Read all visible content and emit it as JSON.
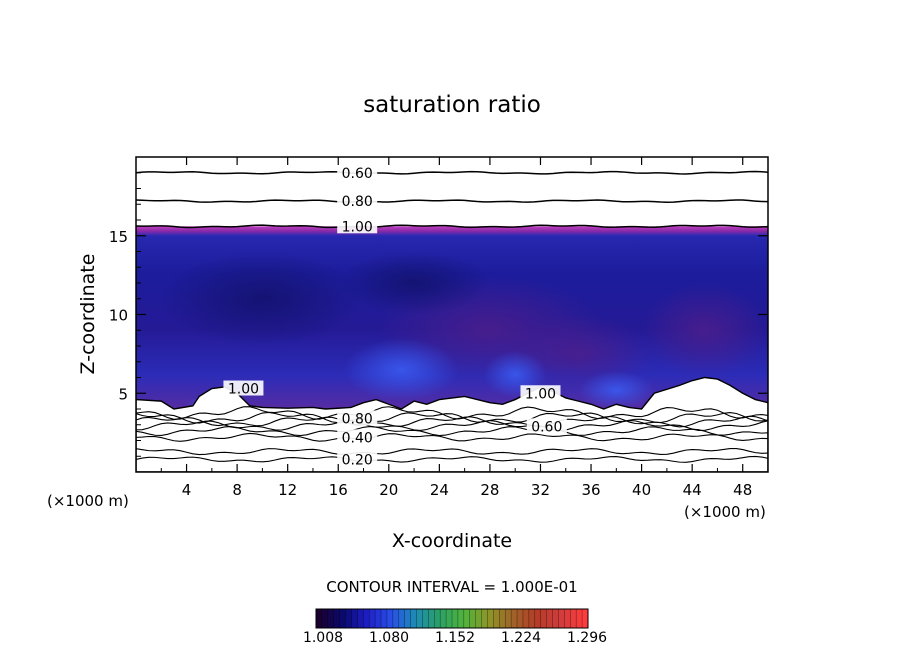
{
  "chart_data": {
    "type": "contour",
    "title": "saturation ratio",
    "xlabel": "X-coordinate",
    "ylabel": "Z-coordinate",
    "x_units": "(×1000 m)",
    "z_units": "(×1000 m)",
    "xlim": [
      0,
      50
    ],
    "ylim": [
      0,
      20
    ],
    "x_ticks": [
      4,
      8,
      12,
      16,
      20,
      24,
      28,
      32,
      36,
      40,
      44,
      48
    ],
    "y_ticks": [
      5,
      10,
      15
    ],
    "contour_interval_text": "CONTOUR INTERVAL = 1.000E-01",
    "colorbar": {
      "range": [
        1.0,
        1.33
      ],
      "ticks": [
        "1.008",
        "1.080",
        "1.152",
        "1.224",
        "1.296"
      ],
      "colors": [
        "#1a0030",
        "#0a0a6e",
        "#1e1ec8",
        "#2850e6",
        "#1e8cb4",
        "#2aa064",
        "#50b43c",
        "#8c9628",
        "#a06428",
        "#b43c28",
        "#d23c3c",
        "#ff3c3c"
      ]
    },
    "contour_labels": [
      {
        "text": "0.60",
        "x": 17.5,
        "z": 19.0
      },
      {
        "text": "0.80",
        "x": 17.5,
        "z": 17.2
      },
      {
        "text": "1.00",
        "x": 17.5,
        "z": 15.6
      },
      {
        "text": "1.00",
        "x": 8.5,
        "z": 5.3
      },
      {
        "text": "1.00",
        "x": 32.0,
        "z": 5.0
      },
      {
        "text": "0.80",
        "x": 17.5,
        "z": 3.4
      },
      {
        "text": "0.60",
        "x": 32.5,
        "z": 2.9
      },
      {
        "text": "0.40",
        "x": 17.5,
        "z": 2.2
      },
      {
        "text": "0.20",
        "x": 17.5,
        "z": 0.8
      }
    ],
    "upper_contours": [
      0.6,
      0.8,
      1.0
    ],
    "upper_contour_z": [
      19.0,
      17.2,
      15.6
    ],
    "lower_contours": [
      0.2,
      0.3,
      0.4,
      0.5,
      0.6,
      0.7,
      0.8,
      0.9
    ],
    "lower_contour_z": [
      0.8,
      1.3,
      2.2,
      2.6,
      2.95,
      3.2,
      3.45,
      3.75
    ],
    "supersaturated_layer_z": [
      3.8,
      15.5
    ],
    "cloud_free_top_profile": [
      [
        0,
        4.6
      ],
      [
        2,
        4.5
      ],
      [
        3,
        4.0
      ],
      [
        4.5,
        4.2
      ],
      [
        5,
        4.8
      ],
      [
        6,
        5.3
      ],
      [
        7,
        5.4
      ],
      [
        8,
        5.0
      ],
      [
        9,
        4.2
      ],
      [
        10,
        4.1
      ],
      [
        12,
        4.05
      ],
      [
        14,
        4.1
      ],
      [
        15,
        4.0
      ],
      [
        17,
        4.1
      ],
      [
        18,
        4.4
      ],
      [
        19,
        4.6
      ],
      [
        20,
        4.3
      ],
      [
        21,
        4.0
      ],
      [
        22,
        4.5
      ],
      [
        23,
        4.3
      ],
      [
        24,
        4.6
      ],
      [
        26,
        4.8
      ],
      [
        28,
        4.4
      ],
      [
        29,
        4.3
      ],
      [
        30,
        4.6
      ],
      [
        31,
        5.0
      ],
      [
        32,
        5.4
      ],
      [
        33,
        5.1
      ],
      [
        34,
        4.7
      ],
      [
        35,
        4.5
      ],
      [
        36,
        4.3
      ],
      [
        37,
        4.0
      ],
      [
        38,
        4.3
      ],
      [
        39,
        4.1
      ],
      [
        40,
        4.0
      ],
      [
        41,
        5.0
      ],
      [
        43,
        5.5
      ],
      [
        44,
        5.8
      ],
      [
        45,
        6.0
      ],
      [
        46,
        5.9
      ],
      [
        47,
        5.5
      ],
      [
        48,
        5.0
      ],
      [
        49,
        4.6
      ],
      [
        50,
        4.4
      ]
    ]
  }
}
